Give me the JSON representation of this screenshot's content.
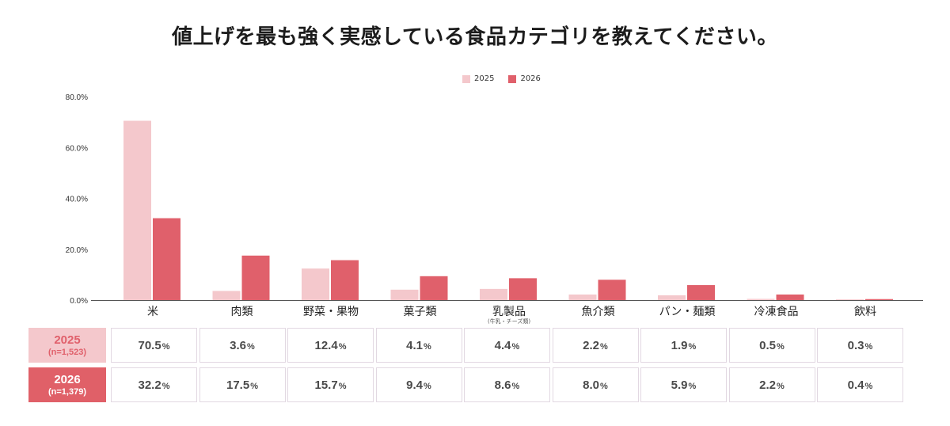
{
  "title": "値上げを最も強く実感している食品カテゴリを教えてください。",
  "colors": {
    "s2025": "#f4c8cc",
    "s2026": "#e0606b",
    "axis": "#555555",
    "cell_border": "#e2d8e2"
  },
  "chart_data": {
    "type": "bar",
    "categories": [
      "米",
      "肉類",
      "野菜・果物",
      "菓子類",
      "乳製品",
      "魚介類",
      "パン・麺類",
      "冷凍食品",
      "飲料"
    ],
    "category_notes": [
      "",
      "",
      "",
      "",
      "(牛乳・チーズ類)",
      "",
      "",
      "",
      ""
    ],
    "series": [
      {
        "name": "2025",
        "values": [
          70.5,
          3.6,
          12.4,
          4.1,
          4.4,
          2.2,
          1.9,
          0.5,
          0.3
        ]
      },
      {
        "name": "2026",
        "values": [
          32.2,
          17.5,
          15.7,
          9.4,
          8.6,
          8.0,
          5.9,
          2.2,
          0.4
        ]
      }
    ],
    "yticks": [
      "0.0%",
      "20.0%",
      "40.0%",
      "60.0%",
      "80.0%"
    ],
    "ylim": [
      0,
      80
    ],
    "legend_position": "top-center",
    "grid": false
  },
  "table": {
    "rows": [
      {
        "year": "2025",
        "n": "(n=1,523)",
        "values": [
          "70.5",
          "3.6",
          "12.4",
          "4.1",
          "4.4",
          "2.2",
          "1.9",
          "0.5",
          "0.3"
        ]
      },
      {
        "year": "2026",
        "n": "(n=1,379)",
        "values": [
          "32.2",
          "17.5",
          "15.7",
          "9.4",
          "8.6",
          "8.0",
          "5.9",
          "2.2",
          "0.4"
        ]
      }
    ],
    "unit": "%"
  }
}
